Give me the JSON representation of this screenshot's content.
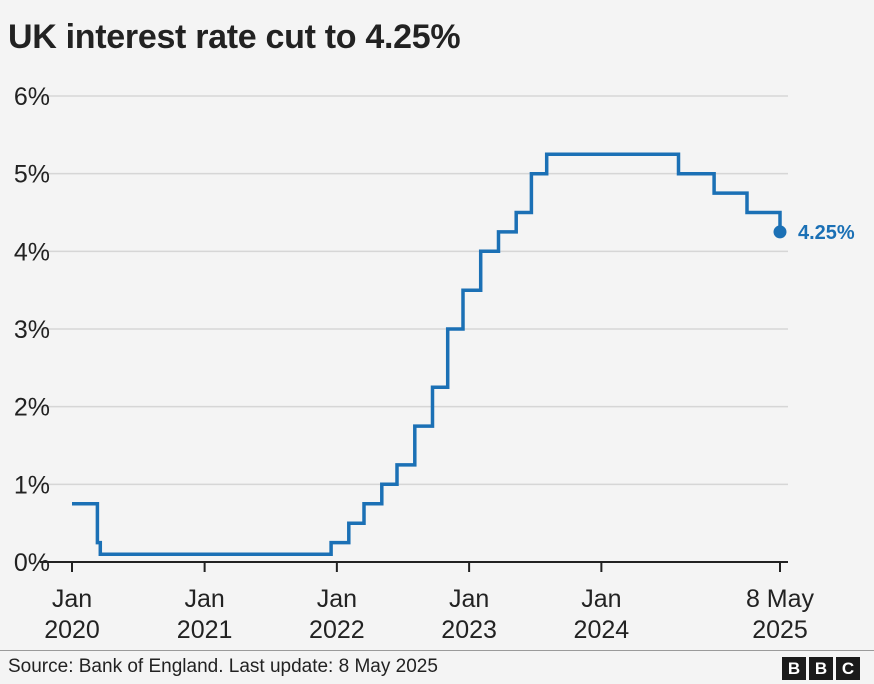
{
  "title": "UK interest rate cut to 4.25%",
  "source": "Source: Bank of England. Last update: 8 May 2025",
  "logo": [
    "B",
    "B",
    "C"
  ],
  "colors": {
    "line": "#1b70b5",
    "grid": "#d6d6d6",
    "axis": "#222222",
    "background": "#f4f4f4"
  },
  "chart_data": {
    "type": "line",
    "step": true,
    "title": "UK interest rate cut to 4.25%",
    "xlabel": "",
    "ylabel": "",
    "ylim": [
      0,
      6
    ],
    "xlim": [
      "2020-01-01",
      "2025-05-31"
    ],
    "grid": true,
    "legend": "none",
    "y_ticks": [
      {
        "value": 0,
        "label": "0%"
      },
      {
        "value": 1,
        "label": "1%"
      },
      {
        "value": 2,
        "label": "2%"
      },
      {
        "value": 3,
        "label": "3%"
      },
      {
        "value": 4,
        "label": "4%"
      },
      {
        "value": 5,
        "label": "5%"
      },
      {
        "value": 6,
        "label": "6%"
      }
    ],
    "x_ticks": [
      {
        "date": "2020-01-01",
        "line1": "Jan",
        "line2": "2020"
      },
      {
        "date": "2021-01-01",
        "line1": "Jan",
        "line2": "2021"
      },
      {
        "date": "2022-01-01",
        "line1": "Jan",
        "line2": "2022"
      },
      {
        "date": "2023-01-01",
        "line1": "Jan",
        "line2": "2023"
      },
      {
        "date": "2024-01-01",
        "line1": "Jan",
        "line2": "2024"
      },
      {
        "date": "2025-05-08",
        "line1": "8 May",
        "line2": "2025"
      }
    ],
    "series": [
      {
        "values": [
          {
            "date": "2020-01-01",
            "rate": 0.75
          },
          {
            "date": "2020-03-11",
            "rate": 0.25
          },
          {
            "date": "2020-03-19",
            "rate": 0.1
          },
          {
            "date": "2021-12-16",
            "rate": 0.25
          },
          {
            "date": "2022-02-03",
            "rate": 0.5
          },
          {
            "date": "2022-03-17",
            "rate": 0.75
          },
          {
            "date": "2022-05-05",
            "rate": 1.0
          },
          {
            "date": "2022-06-16",
            "rate": 1.25
          },
          {
            "date": "2022-08-04",
            "rate": 1.75
          },
          {
            "date": "2022-09-22",
            "rate": 2.25
          },
          {
            "date": "2022-11-03",
            "rate": 3.0
          },
          {
            "date": "2022-12-15",
            "rate": 3.5
          },
          {
            "date": "2023-02-02",
            "rate": 4.0
          },
          {
            "date": "2023-03-23",
            "rate": 4.25
          },
          {
            "date": "2023-05-11",
            "rate": 4.5
          },
          {
            "date": "2023-06-22",
            "rate": 5.0
          },
          {
            "date": "2023-08-03",
            "rate": 5.25
          },
          {
            "date": "2024-08-01",
            "rate": 5.0
          },
          {
            "date": "2024-11-07",
            "rate": 4.75
          },
          {
            "date": "2025-02-06",
            "rate": 4.5
          },
          {
            "date": "2025-05-08",
            "rate": 4.25
          }
        ]
      }
    ],
    "end_label": "4.25%"
  }
}
